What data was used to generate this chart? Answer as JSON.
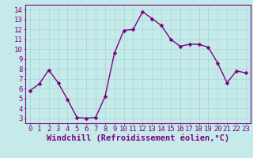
{
  "x": [
    0,
    1,
    2,
    3,
    4,
    5,
    6,
    7,
    8,
    9,
    10,
    11,
    12,
    13,
    14,
    15,
    16,
    17,
    18,
    19,
    20,
    21,
    22,
    23
  ],
  "y": [
    5.8,
    6.5,
    7.9,
    6.6,
    4.9,
    3.1,
    3.0,
    3.1,
    5.2,
    9.6,
    11.9,
    12.0,
    13.8,
    13.1,
    12.4,
    11.0,
    10.3,
    10.5,
    10.5,
    10.2,
    8.6,
    6.6,
    7.8,
    7.6
  ],
  "line_color": "#800080",
  "marker_color": "#800080",
  "bg_color": "#c5eaea",
  "grid_color": "#aad4d4",
  "xlabel": "Windchill (Refroidissement éolien,°C)",
  "xlabel_color": "#800080",
  "xlim": [
    -0.5,
    23.5
  ],
  "ylim": [
    2.5,
    14.5
  ],
  "yticks": [
    3,
    4,
    5,
    6,
    7,
    8,
    9,
    10,
    11,
    12,
    13,
    14
  ],
  "xticks": [
    0,
    1,
    2,
    3,
    4,
    5,
    6,
    7,
    8,
    9,
    10,
    11,
    12,
    13,
    14,
    15,
    16,
    17,
    18,
    19,
    20,
    21,
    22,
    23
  ],
  "tick_fontsize": 6.5,
  "xlabel_fontsize": 7.5,
  "line_width": 1.0,
  "marker_size": 2.5
}
